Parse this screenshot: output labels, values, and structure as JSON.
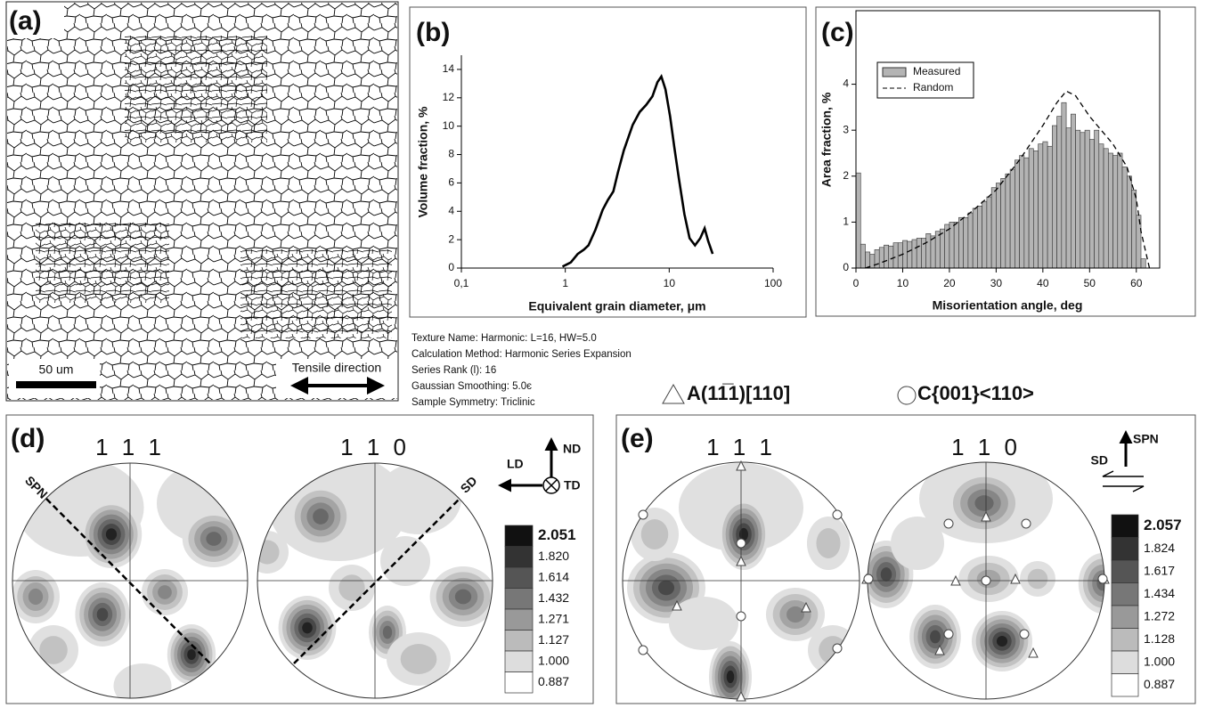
{
  "chart_data": [
    {
      "type": "line",
      "panel_label": "(b)",
      "xlabel": "Equivalent grain diameter, μm",
      "ylabel": "Volume fraction, %",
      "x": [
        0.94,
        1.13,
        1.32,
        1.51,
        1.67,
        1.95,
        2.29,
        2.57,
        2.9,
        3.2,
        3.66,
        4.46,
        5.2,
        6.0,
        6.9,
        7.7,
        8.4,
        9.2,
        10.2,
        11.2,
        12.4,
        14.0,
        15.7,
        17.7,
        19.9,
        21.9,
        23.7,
        26.2
      ],
      "values": [
        0.1,
        0.4,
        1.0,
        1.3,
        1.6,
        2.7,
        4.1,
        4.8,
        5.4,
        6.7,
        8.3,
        10.1,
        11.0,
        11.5,
        12.1,
        13.1,
        13.5,
        12.6,
        10.7,
        8.5,
        6.3,
        3.8,
        2.1,
        1.6,
        2.1,
        2.8,
        1.9,
        1.0
      ],
      "color": "#000000",
      "xscale": "log",
      "xlim": [
        0.1,
        100
      ],
      "xticks": [
        {
          "value": 0.1,
          "label": "0,1"
        },
        1,
        10,
        100
      ],
      "ylim": [
        0,
        15
      ],
      "yticks": [
        0,
        2,
        4,
        6,
        8,
        10,
        12,
        14
      ]
    },
    {
      "type": "histogram",
      "panel_label": "(c)",
      "xlabel": "Misorientation angle, deg",
      "ylabel": "Area fraction, %",
      "xlim": [
        0,
        65
      ],
      "xticks": [
        0,
        10,
        20,
        30,
        40,
        50,
        60
      ],
      "ylim": [
        0,
        5.6
      ],
      "yticks": [
        0,
        1,
        2,
        3,
        4
      ],
      "legend": "upper left",
      "series": [
        {
          "name": "Measured",
          "color": "#b4b4b4",
          "bins": [
            0,
            1,
            2,
            3,
            4,
            5,
            6,
            7,
            8,
            9,
            10,
            11,
            12,
            13,
            14,
            15,
            16,
            17,
            18,
            19,
            20,
            21,
            22,
            23,
            24,
            25,
            26,
            27,
            28,
            29,
            30,
            31,
            32,
            33,
            34,
            35,
            36,
            37,
            38,
            39,
            40,
            41,
            42,
            43,
            44,
            45,
            46,
            47,
            48,
            49,
            50,
            51,
            52,
            53,
            54,
            55,
            56,
            57,
            58,
            59,
            60,
            61,
            62
          ],
          "values": [
            2.07,
            0.52,
            0.35,
            0.3,
            0.4,
            0.45,
            0.5,
            0.48,
            0.55,
            0.55,
            0.6,
            0.58,
            0.62,
            0.65,
            0.65,
            0.75,
            0.7,
            0.8,
            0.85,
            0.95,
            1.0,
            1.0,
            1.1,
            1.1,
            1.2,
            1.3,
            1.35,
            1.45,
            1.55,
            1.75,
            1.85,
            1.95,
            2.05,
            2.15,
            2.35,
            2.45,
            2.4,
            2.6,
            2.55,
            2.7,
            2.75,
            2.65,
            3.1,
            3.3,
            3.6,
            3.05,
            3.35,
            3.0,
            2.95,
            3.0,
            2.8,
            3.0,
            2.7,
            2.6,
            2.5,
            2.45,
            2.5,
            2.2,
            2.0,
            1.7,
            1.15,
            0.2
          ]
        },
        {
          "name": "Random",
          "color": "#000000",
          "linestyle": "dashed",
          "x": [
            2,
            5,
            10,
            15,
            20,
            25,
            30,
            35,
            40,
            43,
            45,
            47,
            50,
            55,
            58,
            60,
            61,
            62.8
          ],
          "values": [
            0,
            0.1,
            0.3,
            0.55,
            0.85,
            1.25,
            1.7,
            2.35,
            3.1,
            3.6,
            3.85,
            3.75,
            3.3,
            2.7,
            2.2,
            1.5,
            0.8,
            0
          ]
        }
      ]
    }
  ],
  "panel_a": {
    "label": "(a)",
    "scale_bar": "50 um",
    "direction": "Tensile direction"
  },
  "texture_info": [
    "Texture Name: Harmonic: L=16, HW=5.0",
    "Calculation Method: Harmonic Series Expansion",
    "Series Rank (l): 16",
    "Gaussian Smoothing: 5.0є",
    "Sample Symmetry: Triclinic"
  ],
  "orientation_legend": [
    "A(11̅1)[110]",
    "C{001}<110>"
  ],
  "panel_d": {
    "label": "(d)",
    "pole_figures": [
      {
        "title": "1 1 1",
        "line_label": "SPN"
      },
      {
        "title": "1 1 0",
        "line_label": "SD"
      }
    ],
    "axes": {
      "horizontal": "LD",
      "vertical": "ND",
      "normal": "TD"
    },
    "contour_levels": [
      "2.051",
      "1.820",
      "1.614",
      "1.432",
      "1.271",
      "1.127",
      "1.000",
      "0.887"
    ]
  },
  "panel_e": {
    "label": "(e)",
    "pole_figures": [
      {
        "title": "1 1 1"
      },
      {
        "title": "1 1 0"
      }
    ],
    "axes": {
      "horizontal": "SD",
      "vertical": "SPN"
    },
    "contour_levels": [
      "2.057",
      "1.824",
      "1.617",
      "1.434",
      "1.272",
      "1.128",
      "1.000",
      "0.887"
    ]
  }
}
